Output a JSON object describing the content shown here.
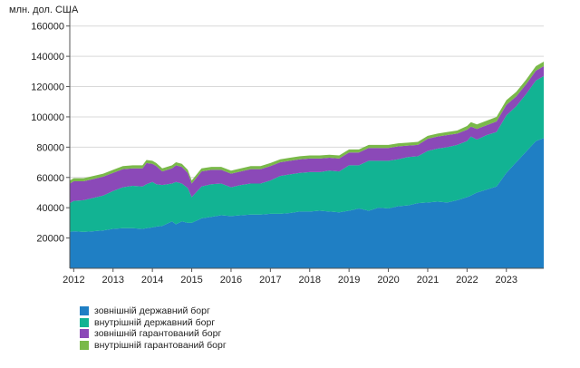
{
  "chart_data": {
    "type": "area",
    "stacked": true,
    "ylabel": "млн. дол. США",
    "ylim": [
      0,
      170000
    ],
    "yticks": [
      20000,
      40000,
      60000,
      80000,
      100000,
      120000,
      140000,
      160000
    ],
    "ytick_labels": [
      "20000",
      "40000",
      "60000",
      "80000",
      "100000",
      "120000",
      "140000",
      "160000"
    ],
    "xlim": [
      2011.9,
      2023.95
    ],
    "xticks": [
      2012,
      2013,
      2014,
      2015,
      2016,
      2017,
      2018,
      2019,
      2020,
      2021,
      2022,
      2023
    ],
    "xtick_labels": [
      "2012",
      "2013",
      "2014",
      "2015",
      "2016",
      "2017",
      "2018",
      "2019",
      "2020",
      "2021",
      "2022",
      "2023"
    ],
    "grid": "horizontal",
    "legend_position": "bottom-left",
    "x": [
      2011.9,
      2012.0,
      2012.25,
      2012.5,
      2012.75,
      2013.0,
      2013.25,
      2013.5,
      2013.75,
      2013.85,
      2014.0,
      2014.1,
      2014.25,
      2014.5,
      2014.6,
      2014.75,
      2014.9,
      2015.0,
      2015.25,
      2015.5,
      2015.75,
      2016.0,
      2016.25,
      2016.5,
      2016.75,
      2017.0,
      2017.25,
      2017.5,
      2017.75,
      2018.0,
      2018.25,
      2018.5,
      2018.75,
      2019.0,
      2019.25,
      2019.5,
      2019.75,
      2020.0,
      2020.25,
      2020.5,
      2020.75,
      2021.0,
      2021.25,
      2021.5,
      2021.75,
      2022.0,
      2022.1,
      2022.25,
      2022.5,
      2022.75,
      2023.0,
      2023.25,
      2023.5,
      2023.75,
      2023.95
    ],
    "series": [
      {
        "name": "зовнішній державний борг",
        "color": "#1f7fc4",
        "values": [
          24000,
          24500,
          24000,
          24500,
          25000,
          26000,
          26500,
          26500,
          26000,
          26500,
          27000,
          27500,
          28000,
          31000,
          29000,
          31000,
          30000,
          30000,
          33000,
          34000,
          35000,
          34500,
          35000,
          35500,
          35500,
          36000,
          36000,
          36500,
          37500,
          37500,
          38000,
          37500,
          37000,
          38000,
          39500,
          38000,
          40000,
          39500,
          41000,
          41500,
          43000,
          43500,
          44000,
          43500,
          45000,
          47000,
          48000,
          50000,
          52000,
          54000,
          63000,
          70000,
          77000,
          84000,
          86000
        ]
      },
      {
        "name": "внутрішній державний борг",
        "color": "#12b393",
        "values": [
          19000,
          20000,
          21000,
          22000,
          23000,
          25000,
          27000,
          28000,
          28000,
          29000,
          30000,
          28000,
          27000,
          25000,
          28000,
          25000,
          23000,
          17000,
          21000,
          21500,
          21000,
          19000,
          20000,
          20500,
          20500,
          22000,
          25000,
          25500,
          25500,
          26000,
          25500,
          27000,
          27000,
          30000,
          28500,
          33000,
          31000,
          31500,
          31000,
          32000,
          31000,
          34000,
          35000,
          36500,
          36500,
          37000,
          39000,
          35000,
          36000,
          36000,
          38000,
          37000,
          38000,
          40000,
          41000
        ]
      },
      {
        "name": "зовнішній гарантований борг",
        "color": "#8b49b8",
        "values": [
          13000,
          13000,
          12500,
          12500,
          12500,
          12000,
          12000,
          11500,
          12000,
          14000,
          12000,
          12000,
          9000,
          10000,
          11000,
          11000,
          10000,
          9000,
          10000,
          9500,
          9000,
          9000,
          9000,
          9500,
          9500,
          9500,
          9000,
          9000,
          9000,
          9000,
          9000,
          8500,
          8500,
          8500,
          8500,
          8500,
          8500,
          8500,
          8500,
          7500,
          7500,
          8000,
          8000,
          8000,
          7500,
          7500,
          6500,
          7000,
          6500,
          7000,
          7000,
          6500,
          6500,
          6500,
          6500
        ]
      },
      {
        "name": "внутрішній гарантований борг",
        "color": "#7ab94a",
        "values": [
          2000,
          2000,
          2000,
          2000,
          2000,
          2000,
          2000,
          2000,
          2000,
          2000,
          2000,
          2000,
          2000,
          2000,
          2000,
          2000,
          2000,
          2000,
          2000,
          2000,
          2000,
          2000,
          2000,
          2000,
          2000,
          2000,
          2000,
          2000,
          2000,
          2000,
          2000,
          2000,
          2000,
          2000,
          2000,
          2000,
          2000,
          2000,
          2000,
          2000,
          2000,
          2000,
          2000,
          2000,
          2000,
          2500,
          3000,
          3000,
          3000,
          3000,
          3000,
          3000,
          3000,
          3000,
          3000
        ]
      }
    ]
  }
}
